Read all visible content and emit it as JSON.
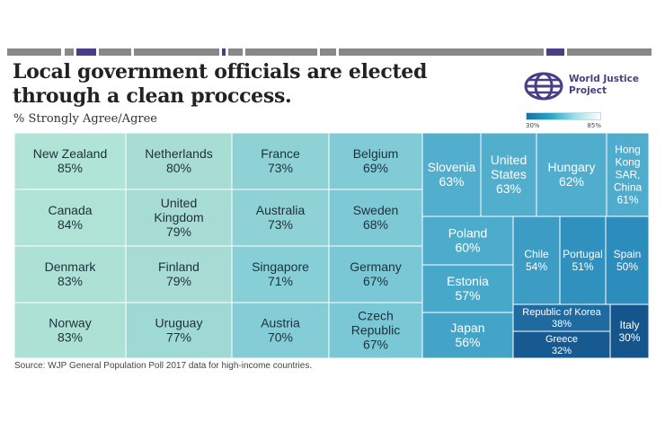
{
  "header": {
    "title": "Local government officials are elected through a clean proccess.",
    "subtitle": "% Strongly Agree/Agree"
  },
  "logo": {
    "text": "World Justice Project",
    "icon": "globe-icon",
    "color": "#4a3f86"
  },
  "legend": {
    "min_label": "30%",
    "max_label": "85%"
  },
  "source": "Source: WJP General Population Poll 2017 data for high-income countries.",
  "chart_data": {
    "type": "treemap",
    "unit": "%",
    "value_range": [
      30,
      85
    ],
    "items": [
      {
        "name": "New Zealand",
        "value": 85
      },
      {
        "name": "Canada",
        "value": 84
      },
      {
        "name": "Denmark",
        "value": 83
      },
      {
        "name": "Norway",
        "value": 83
      },
      {
        "name": "Netherlands",
        "value": 80
      },
      {
        "name": "United Kingdom",
        "value": 79
      },
      {
        "name": "Finland",
        "value": 79
      },
      {
        "name": "Uruguay",
        "value": 77
      },
      {
        "name": "France",
        "value": 73
      },
      {
        "name": "Australia",
        "value": 73
      },
      {
        "name": "Singapore",
        "value": 71
      },
      {
        "name": "Austria",
        "value": 70
      },
      {
        "name": "Belgium",
        "value": 69
      },
      {
        "name": "Sweden",
        "value": 68
      },
      {
        "name": "Germany",
        "value": 67
      },
      {
        "name": "Czech Republic",
        "value": 67
      },
      {
        "name": "Slovenia",
        "value": 63
      },
      {
        "name": "United States",
        "value": 63
      },
      {
        "name": "Hungary",
        "value": 62
      },
      {
        "name": "Hong Kong SAR, China",
        "value": 61
      },
      {
        "name": "Poland",
        "value": 60
      },
      {
        "name": "Estonia",
        "value": 57
      },
      {
        "name": "Japan",
        "value": 56
      },
      {
        "name": "Chile",
        "value": 54
      },
      {
        "name": "Portugal",
        "value": 51
      },
      {
        "name": "Spain",
        "value": 50
      },
      {
        "name": "Republic of Korea",
        "value": 38
      },
      {
        "name": "Greece",
        "value": 32
      },
      {
        "name": "Italy",
        "value": 30
      }
    ]
  }
}
